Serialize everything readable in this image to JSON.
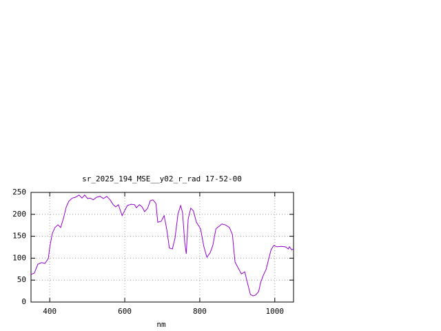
{
  "chart_data": {
    "type": "line",
    "title": "sr_2025_194_MSE__y02_r_rad 17-52-00",
    "x_label": "nm",
    "x": [
      350,
      359,
      368,
      378,
      387,
      396,
      401,
      407,
      414,
      422,
      429,
      436,
      444,
      451,
      460,
      469,
      478,
      486,
      493,
      501,
      508,
      516,
      525,
      534,
      543,
      552,
      561,
      569,
      576,
      583,
      593,
      600,
      607,
      617,
      626,
      631,
      639,
      646,
      653,
      661,
      668,
      675,
      683,
      688,
      697,
      705,
      712,
      719,
      727,
      734,
      742,
      749,
      754,
      760,
      764,
      769,
      776,
      783,
      791,
      802,
      811,
      819,
      828,
      835,
      843,
      852,
      859,
      868,
      879,
      887,
      894,
      901,
      911,
      920,
      927,
      935,
      942,
      949,
      957,
      962,
      969,
      977,
      984,
      990,
      997,
      1006,
      1017,
      1028,
      1036,
      1039,
      1045,
      1050
    ],
    "series": [
      {
        "color": "#9400d3",
        "values": [
          63,
          66,
          86,
          90,
          88,
          99,
          130,
          157,
          170,
          176,
          170,
          189,
          217,
          230,
          237,
          239,
          244,
          237,
          244,
          236,
          237,
          233,
          239,
          241,
          236,
          241,
          233,
          222,
          217,
          222,
          197,
          209,
          220,
          223,
          222,
          215,
          222,
          217,
          206,
          214,
          231,
          233,
          225,
          182,
          184,
          197,
          165,
          123,
          121,
          146,
          201,
          220,
          204,
          135,
          110,
          189,
          214,
          208,
          182,
          167,
          126,
          102,
          113,
          130,
          167,
          173,
          178,
          176,
          170,
          154,
          91,
          80,
          64,
          69,
          44,
          17,
          14,
          16,
          24,
          44,
          60,
          75,
          99,
          119,
          129,
          126,
          127,
          126,
          121,
          126,
          119,
          121
        ]
      }
    ],
    "xlim": [
      350,
      1050
    ],
    "ylim": [
      0,
      250
    ],
    "xticks": [
      400,
      600,
      800,
      1000
    ],
    "yticks": [
      0,
      50,
      100,
      150,
      200,
      250
    ],
    "grid": true
  }
}
